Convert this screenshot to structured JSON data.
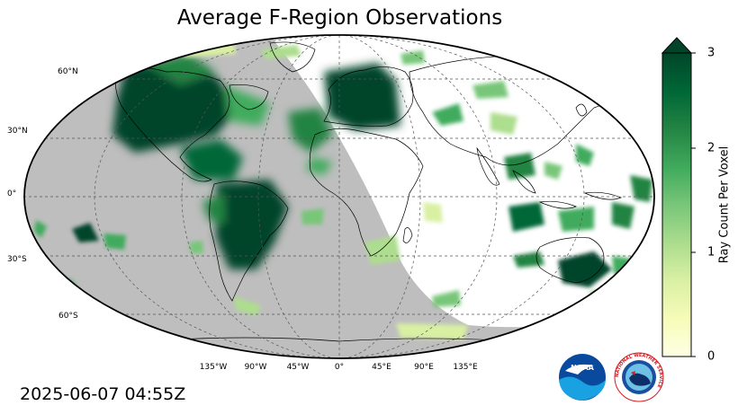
{
  "title": "Average F-Region Observations",
  "timestamp": "2025-06-07 04:55Z",
  "latitude_labels": [
    "60°N",
    "30°N",
    "0°",
    "30°S",
    "60°S"
  ],
  "longitude_labels": [
    "135°W",
    "90°W",
    "45°W",
    "0°",
    "45°E",
    "90°E",
    "135°E"
  ],
  "colorbar": {
    "label": "Ray Count Per Voxel",
    "ticks": [
      "0",
      "1",
      "2",
      "3"
    ],
    "min": 0,
    "max": 3,
    "extend": "max",
    "colors": [
      "#ffffe5",
      "#f7fcb9",
      "#d9f0a3",
      "#addd8e",
      "#78c679",
      "#41ab5d",
      "#238443",
      "#006837",
      "#004529"
    ]
  },
  "map_colors": {
    "night_shade": "#bebebe",
    "coast": "#000000",
    "grid": "#555555"
  },
  "logos": {
    "left_icon": "noaa-logo-icon",
    "left_text": "NOAA",
    "right_icon": "nws-logo-icon",
    "right_text": "NATIONAL WEATHER SERVICE"
  }
}
